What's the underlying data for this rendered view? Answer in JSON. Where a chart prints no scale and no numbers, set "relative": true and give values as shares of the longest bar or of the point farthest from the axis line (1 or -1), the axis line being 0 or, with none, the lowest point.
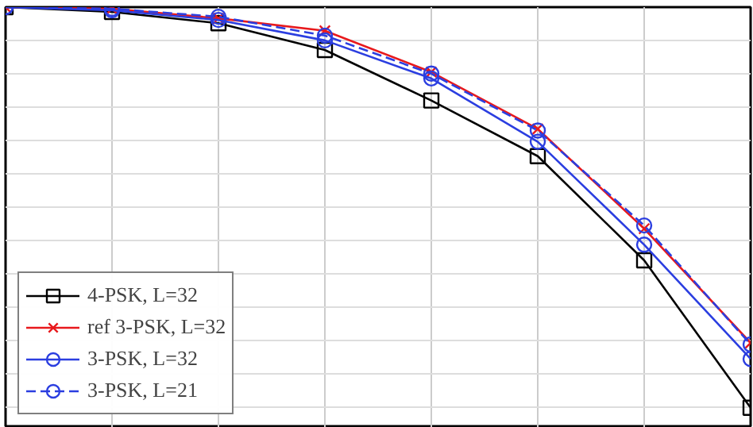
{
  "chart_data": {
    "type": "line",
    "relative": true,
    "categories": [
      null,
      null,
      null,
      null,
      null,
      null,
      null,
      null
    ],
    "grid": true,
    "legend": "bottom left",
    "series": [
      {
        "name": "4-PSK, L=32",
        "color": "#000000",
        "marker": "square",
        "line_style": "solid",
        "values": [
          1,
          0.988,
          0.96,
          0.893,
          0.767,
          0.628,
          0.368,
          0
        ]
      },
      {
        "name": "ref 3-PSK, L=32",
        "color": "#e8191c",
        "marker": "cross",
        "line_style": "solid",
        "values": [
          1,
          0.996,
          0.972,
          0.941,
          0.838,
          0.696,
          0.447,
          0.162
        ]
      },
      {
        "name": "3-PSK, L=32",
        "color": "#2b3ee0",
        "marker": "circle",
        "line_style": "solid",
        "values": [
          1,
          0.992,
          0.968,
          0.917,
          0.822,
          0.664,
          0.407,
          0.122
        ]
      },
      {
        "name": "3-PSK, L=21",
        "color": "#2b3ee0",
        "marker": "circle",
        "line_style": "dashed",
        "values": [
          1,
          0.996,
          0.976,
          0.929,
          0.834,
          0.692,
          0.455,
          0.158
        ]
      }
    ]
  }
}
